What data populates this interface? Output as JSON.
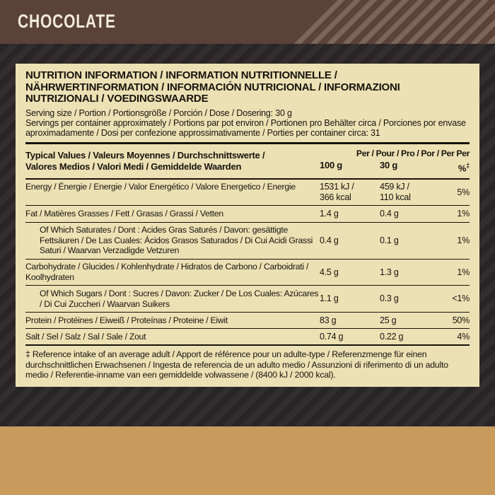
{
  "flavor": "CHOCOLATE",
  "colors": {
    "banner_brown": "#5b4238",
    "banner_stripe": "#7c665c",
    "panel_cream": "#ece1b4",
    "gold_band": "#c89b5d",
    "background_dark": "#292526",
    "text_dark": "#17120d",
    "flavor_text": "#f2ecda"
  },
  "panel": {
    "title_lines": [
      "NUTRITION INFORMATION / INFORMATION NUTRITIONNELLE /",
      "NÄHRWERTINFORMATION / INFORMACIÓN NUTRICIONAL / INFORMAZIONI",
      "NUTRIZIONALI / VOEDINGSWAARDE"
    ],
    "serving_lines": [
      "Serving size / Portion / Portionsgröße / Porción / Dose / Dosering: 30 g",
      "Servings per container approximately / Portions par pot environ / Portionen pro Behälter circa / Porciones por envase aproximadamente / Dosi per confezione approssimativamente / Porties per container circa: 31"
    ],
    "footnote": "‡ Reference intake of an average adult / Apport de référence pour un adulte-type / Referenzmenge für einen durchschnittlichen Erwachsenen / Ingesta de referencia de un adulto medio / Assunzioni di riferimento di un adulto medio / Referentie-inname van een gemiddelde volwassene / (8400 kJ / 2000 kcal)."
  },
  "table": {
    "header": {
      "label_lines": [
        "Typical Values / Valeurs Moyennes / Durchschnittswerte /",
        "Valores Medios / Valori Medi / Gemiddelde Waarden"
      ],
      "per_line": "Per / Pour / Pro / Por / Per Per",
      "units": [
        "100 g",
        "30 g",
        "%"
      ],
      "ri_mark": "‡"
    },
    "rows": [
      {
        "label": "Energy / Énergie / Energie / Valor Energético / Valore Energetico / Energie",
        "per100": "1531 kJ /",
        "per100b": "366 kcal",
        "per30": "459 kJ /",
        "per30b": "110 kcal",
        "ri": "5%"
      },
      {
        "label": "Fat / Matières Grasses / Fett / Grasas / Grassi / Vetten",
        "per100": "1.4 g",
        "per30": "0.4 g",
        "ri": "1%"
      },
      {
        "label": "Of Which Saturates / Dont : Acides Gras Saturés / Davon: gesättigte Fettsäuren / De Las Cuales: Ácidos Grasos Saturados / Di Cui Acidi Grassi Saturi / Waarvan Verzadigde Vetzuren",
        "per100": "0.4 g",
        "per30": "0.1 g",
        "ri": "1%"
      },
      {
        "label": "Carbohydrate / Glucides / Kohlenhydrate / Hidratos de Carbono / Carboidrati / Koolhydraten",
        "per100": "4.5 g",
        "per30": "1.3 g",
        "ri": "1%"
      },
      {
        "label": "Of Which Sugars / Dont : Sucres / Davon: Zucker / De Los Cuales: Azúcares / Di Cui Zuccheri / Waarvan Suikers",
        "per100": "1.1 g",
        "per30": "0.3 g",
        "ri": "<1%"
      },
      {
        "label": "Protein / Protéines / Eiweiß / Proteínas / Proteine / Eiwit",
        "per100": "83 g",
        "per30": "25 g",
        "ri": "50%"
      },
      {
        "label": "Salt / Sel / Salz / Sal / Sale / Zout",
        "per100": "0.74 g",
        "per30": "0.22 g",
        "ri": "4%"
      }
    ]
  }
}
